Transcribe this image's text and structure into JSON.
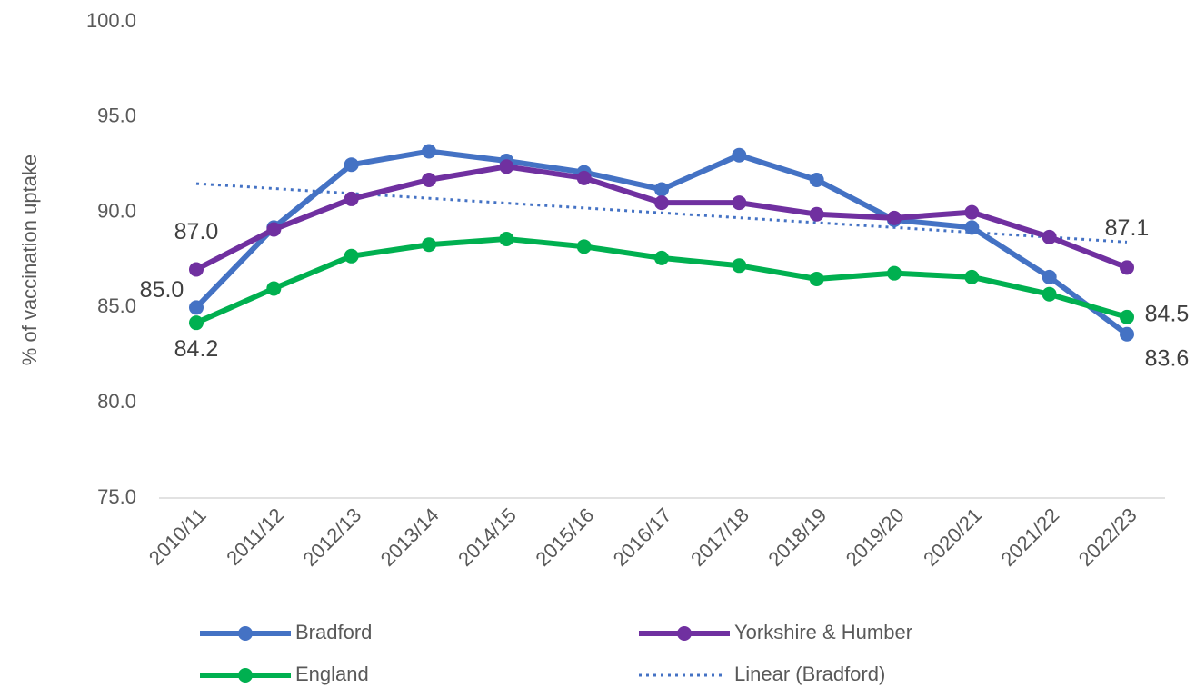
{
  "chart_data": {
    "type": "line",
    "y_label": "% of vaccination uptake",
    "categories": [
      "2010/11",
      "2011/12",
      "2012/13",
      "2013/14",
      "2014/15",
      "2015/16",
      "2016/17",
      "2017/18",
      "2018/19",
      "2019/20",
      "2020/21",
      "2021/22",
      "2022/23"
    ],
    "series": [
      {
        "name": "Bradford",
        "color": "#4472c4",
        "values": [
          85.0,
          89.2,
          92.5,
          93.2,
          92.7,
          92.1,
          91.2,
          93.0,
          91.7,
          89.6,
          89.2,
          86.6,
          83.6
        ],
        "value_labels": [
          "85.0",
          null,
          null,
          null,
          null,
          null,
          null,
          null,
          null,
          null,
          null,
          null,
          "83.6"
        ]
      },
      {
        "name": "Yorkshire & Humber",
        "color": "#7030a0",
        "values": [
          87.0,
          89.1,
          90.7,
          91.7,
          92.4,
          91.8,
          90.5,
          90.5,
          89.9,
          89.7,
          90.0,
          88.7,
          87.1
        ],
        "value_labels": [
          "87.0",
          null,
          null,
          null,
          null,
          null,
          null,
          null,
          null,
          null,
          null,
          null,
          "87.1"
        ]
      },
      {
        "name": "England",
        "color": "#00b050",
        "values": [
          84.2,
          86.0,
          87.7,
          88.3,
          88.6,
          88.2,
          87.6,
          87.2,
          86.5,
          86.8,
          86.6,
          85.7,
          84.5
        ],
        "value_labels": [
          "84.2",
          null,
          null,
          null,
          null,
          null,
          null,
          null,
          null,
          null,
          null,
          null,
          "84.5"
        ]
      }
    ],
    "trendline": {
      "name": "Linear (Bradford)",
      "color": "#4472c4"
    },
    "ylim": [
      75,
      100
    ],
    "yticks": [
      {
        "value": 75,
        "label": "75.0"
      },
      {
        "value": 80,
        "label": "80.0"
      },
      {
        "value": 85,
        "label": "85.0"
      },
      {
        "value": 90,
        "label": "90.0"
      },
      {
        "value": 95,
        "label": "95.0"
      },
      {
        "value": 100,
        "label": "100.0"
      }
    ],
    "grid": false
  }
}
